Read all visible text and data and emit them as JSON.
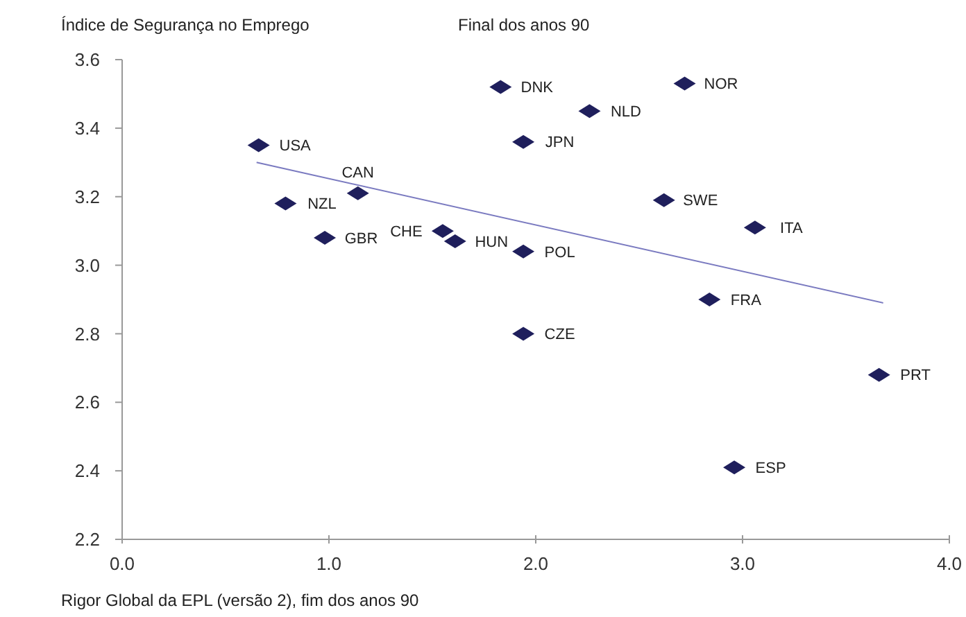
{
  "chart_data": {
    "type": "scatter",
    "title": "Final dos anos 90",
    "ylabel": "Índice de Segurança no Emprego",
    "xlabel": "Rigor Global da EPL (versão 2), fim dos anos 90",
    "xlim": [
      0,
      4
    ],
    "xticks": [
      {
        "value": 0,
        "label": "0.0"
      },
      {
        "value": 1,
        "label": "1.0"
      },
      {
        "value": 2,
        "label": "2.0"
      },
      {
        "value": 3,
        "label": "3.0"
      },
      {
        "value": 4,
        "label": "4.0"
      }
    ],
    "ylim": [
      2.2,
      3.6
    ],
    "yticks": [
      2.2,
      2.4,
      2.6,
      2.8,
      {
        "value": 3,
        "label": "3.0"
      },
      3.2,
      3.4,
      3.6
    ],
    "grid": false,
    "series": [
      {
        "color": "#1f1f5c",
        "marker": "diamond",
        "x": [
          0.66,
          0.79,
          1.14,
          0.98,
          1.55,
          1.61,
          1.83,
          2.72,
          2.26,
          1.94,
          2.62,
          3.06,
          1.94,
          2.84,
          1.94,
          3.66,
          2.96
        ],
        "values": [
          3.35,
          3.18,
          3.21,
          3.08,
          3.1,
          3.07,
          3.52,
          3.53,
          3.45,
          3.36,
          3.19,
          3.11,
          3.04,
          2.9,
          2.8,
          2.68,
          2.41
        ]
      },
      {
        "type": "line",
        "color": "#7a7ac0",
        "marker": "none",
        "x": [
          0.65,
          3.68
        ],
        "values": [
          3.3,
          2.89
        ]
      }
    ],
    "annotations": [
      {
        "text": "USA",
        "x": 0.66,
        "y": 3.35
      },
      {
        "text": "NZL",
        "x": 0.79,
        "y": 3.18
      },
      {
        "text": "CAN",
        "x": 1.14,
        "y": 3.21
      },
      {
        "text": "GBR",
        "x": 0.98,
        "y": 3.08
      },
      {
        "text": "CHE",
        "x": 1.55,
        "y": 3.1
      },
      {
        "text": "HUN",
        "x": 1.61,
        "y": 3.07
      },
      {
        "text": "DNK",
        "x": 1.83,
        "y": 3.52
      },
      {
        "text": "NOR",
        "x": 2.72,
        "y": 3.53
      },
      {
        "text": "NLD",
        "x": 2.26,
        "y": 3.45
      },
      {
        "text": "JPN",
        "x": 1.94,
        "y": 3.36
      },
      {
        "text": "SWE",
        "x": 2.62,
        "y": 3.19
      },
      {
        "text": "ITA",
        "x": 3.06,
        "y": 3.11
      },
      {
        "text": "POL",
        "x": 1.94,
        "y": 3.04
      },
      {
        "text": "FRA",
        "x": 2.84,
        "y": 2.9
      },
      {
        "text": "CZE",
        "x": 1.94,
        "y": 2.8
      },
      {
        "text": "PRT",
        "x": 3.66,
        "y": 2.68
      },
      {
        "text": "ESP",
        "x": 2.96,
        "y": 2.41
      }
    ]
  }
}
